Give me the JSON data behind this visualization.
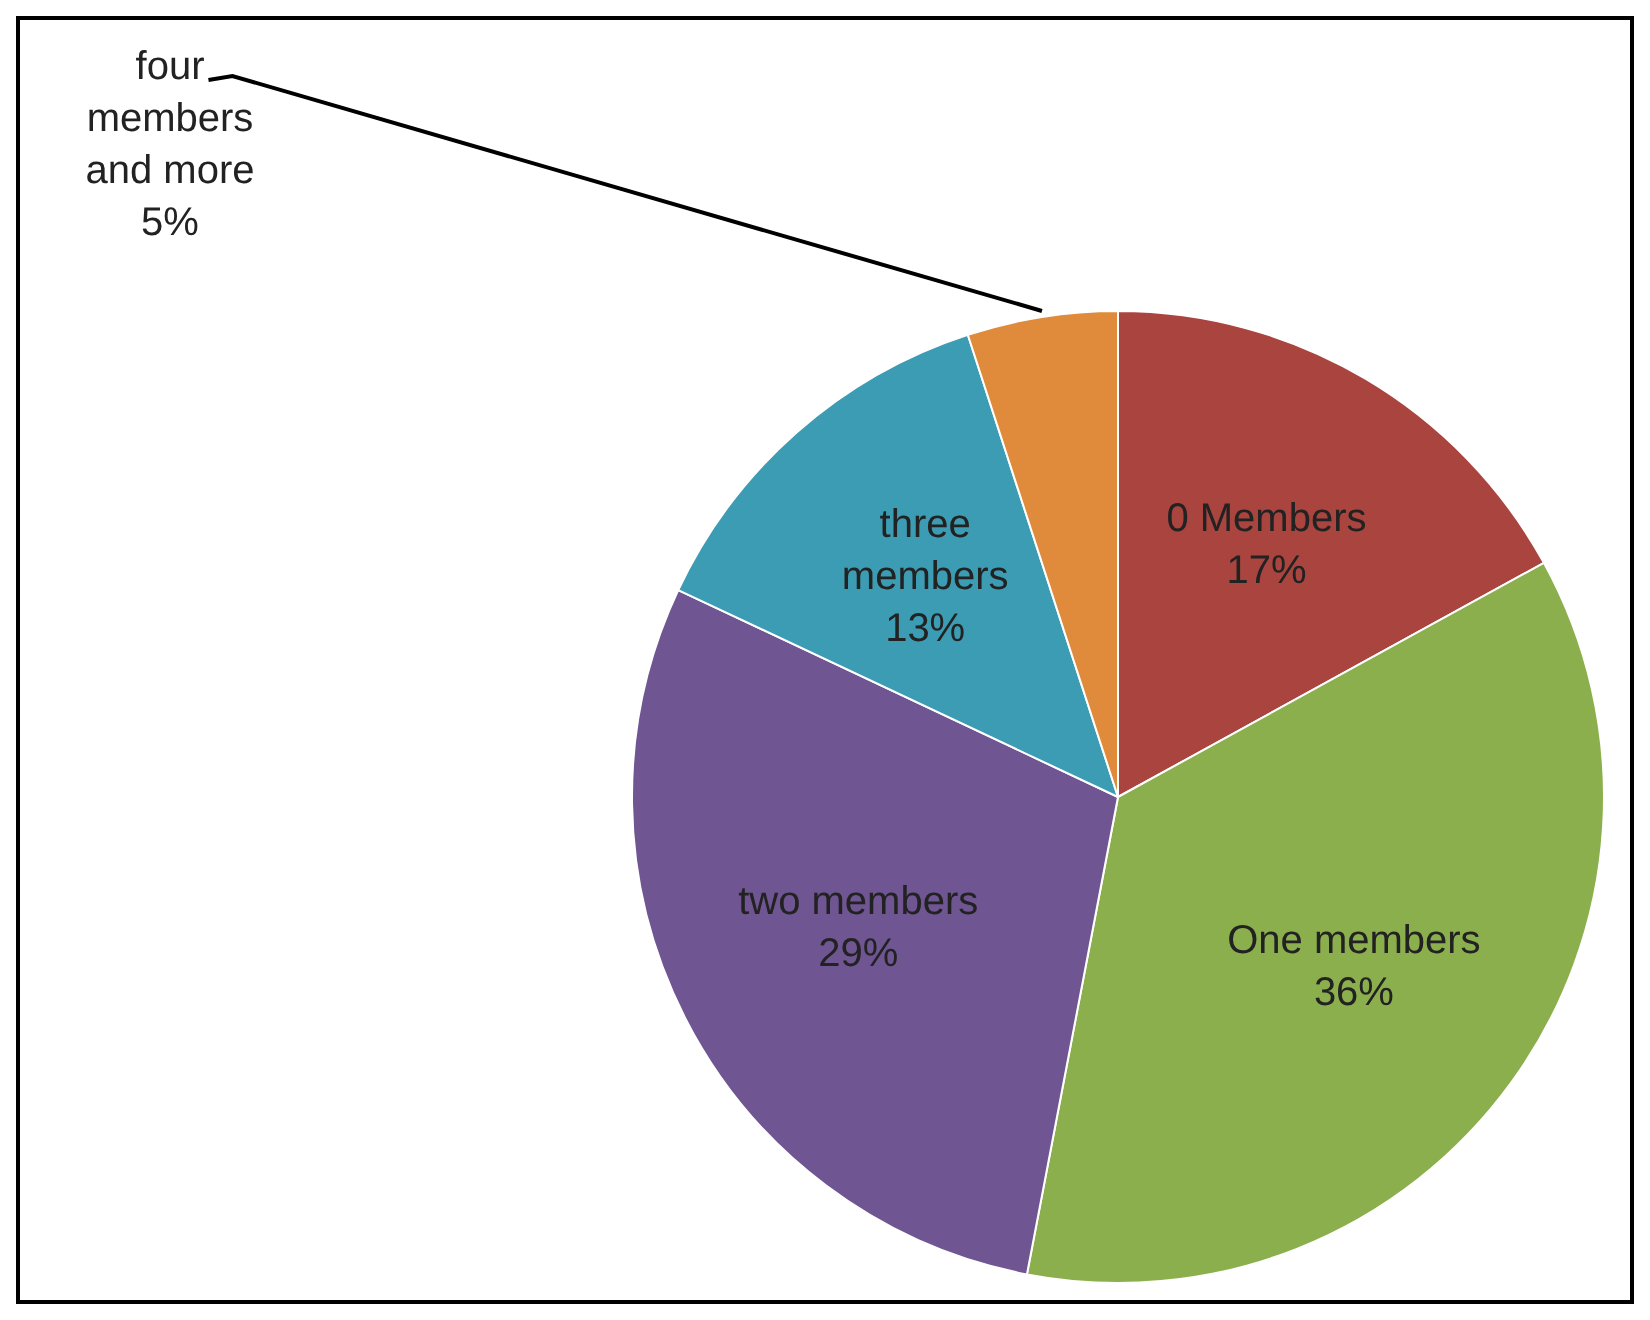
{
  "chart_data": {
    "type": "pie",
    "categories": [
      "0 Members",
      "One members",
      "two members",
      "three members",
      "four members and more"
    ],
    "values": [
      17,
      36,
      29,
      13,
      5
    ],
    "value_labels": [
      "17%",
      "36%",
      "29%",
      "13%",
      "5%"
    ],
    "colors": [
      "#a9443f",
      "#8caf4e",
      "#6f5592",
      "#3b9cb3",
      "#e08a3c"
    ],
    "legend": false
  }
}
